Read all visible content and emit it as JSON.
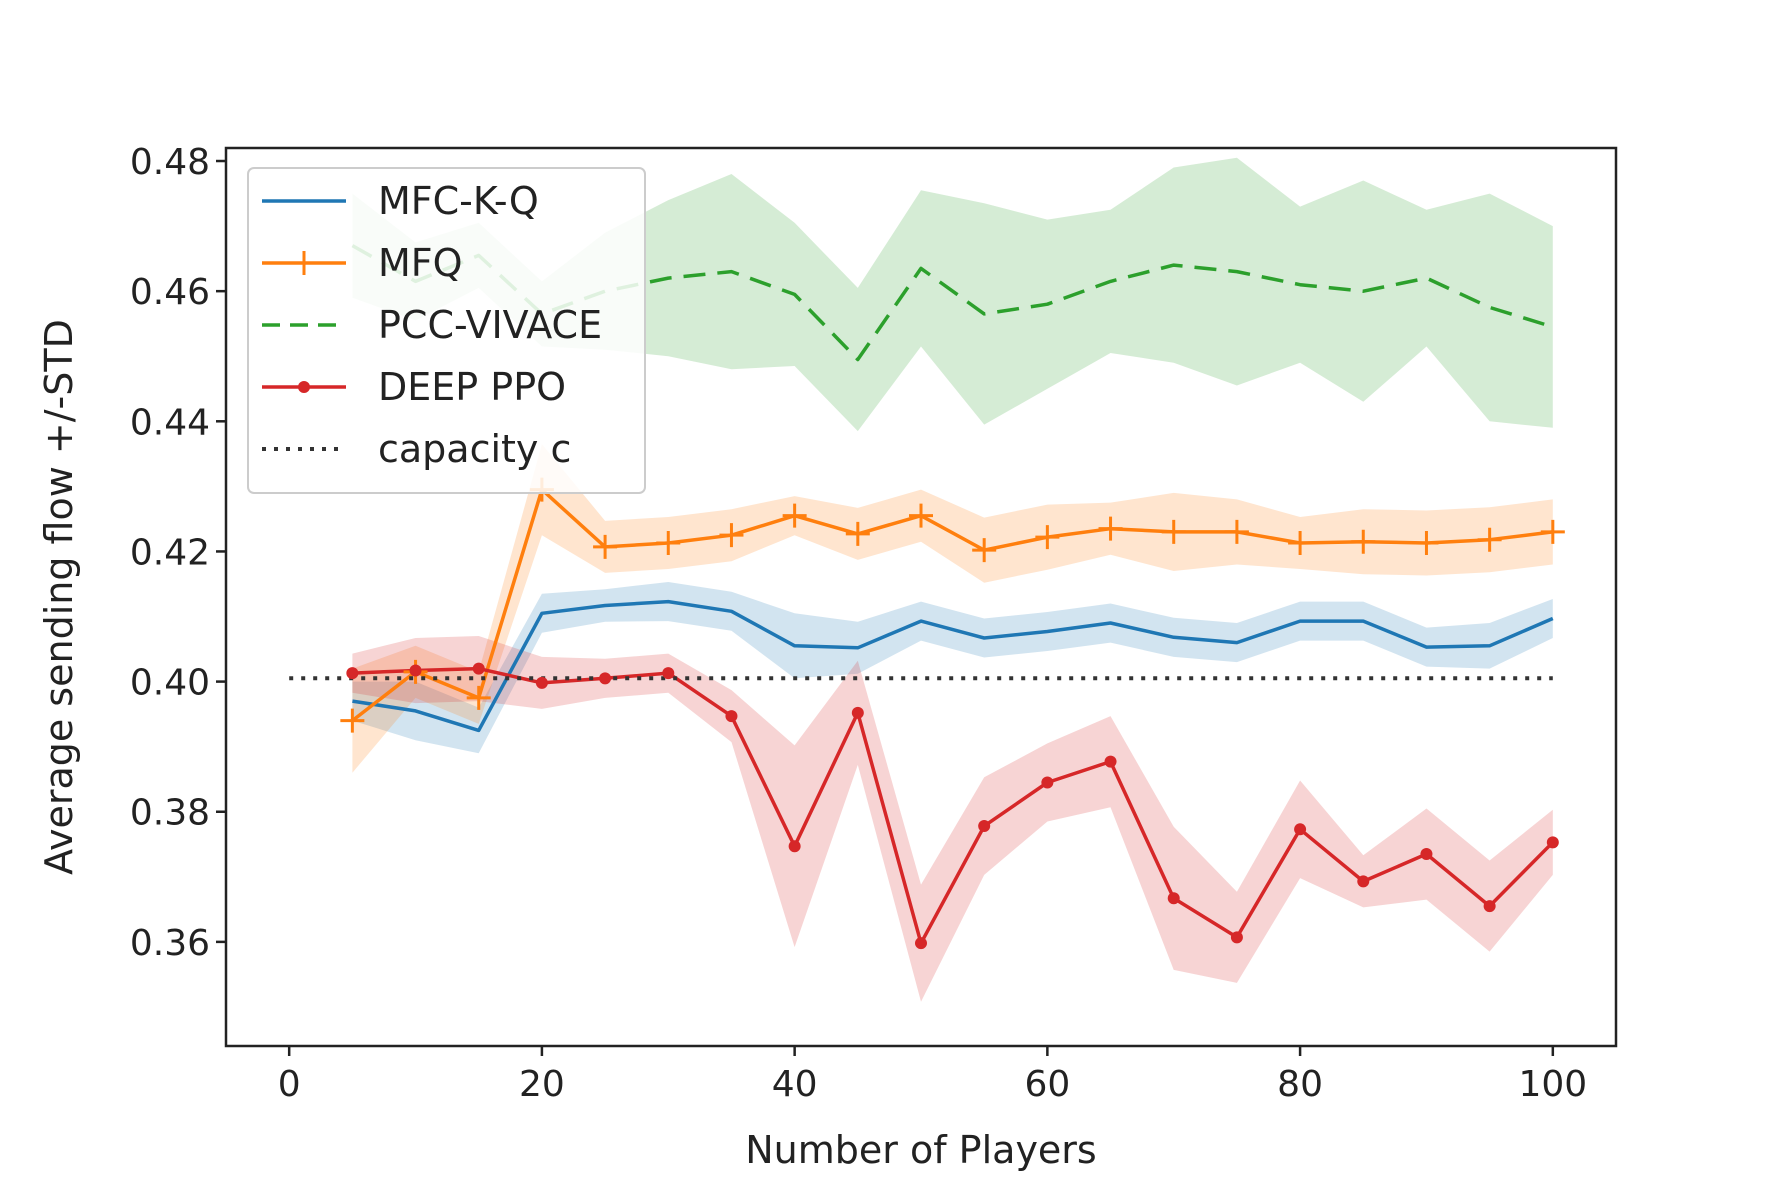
{
  "chart_data": {
    "type": "line",
    "title": "",
    "xlabel": "Number of Players",
    "ylabel": "Average sending flow +/-STD",
    "xlim": [
      -5,
      105
    ],
    "ylim": [
      0.344,
      0.482
    ],
    "xticks": [
      0,
      20,
      40,
      60,
      80,
      100
    ],
    "xtick_labels": [
      "0",
      "20",
      "40",
      "60",
      "80",
      "100"
    ],
    "yticks": [
      0.36,
      0.38,
      0.4,
      0.42,
      0.44,
      0.46,
      0.48
    ],
    "ytick_labels": [
      "0.36",
      "0.38",
      "0.40",
      "0.42",
      "0.44",
      "0.46",
      "0.48"
    ],
    "grid": false,
    "legend_position": "top-left",
    "x": [
      5,
      10,
      15,
      20,
      25,
      30,
      35,
      40,
      45,
      50,
      55,
      60,
      65,
      70,
      75,
      80,
      85,
      90,
      95,
      100
    ],
    "series": [
      {
        "name": "MFC-K-Q",
        "color": "#1f77b4",
        "style": "solid",
        "marker": "none",
        "values": [
          0.397,
          0.3955,
          0.3925,
          0.4105,
          0.4117,
          0.4123,
          0.4108,
          0.4055,
          0.4052,
          0.4093,
          0.4067,
          0.4077,
          0.409,
          0.4068,
          0.406,
          0.4093,
          0.4093,
          0.4053,
          0.4055,
          0.4097
        ],
        "std": [
          0.003,
          0.0045,
          0.0035,
          0.003,
          0.0025,
          0.003,
          0.003,
          0.005,
          0.004,
          0.003,
          0.003,
          0.003,
          0.003,
          0.003,
          0.003,
          0.003,
          0.003,
          0.003,
          0.0035,
          0.003
        ]
      },
      {
        "name": "MFQ",
        "color": "#ff7f0e",
        "style": "solid",
        "marker": "plus",
        "values": [
          0.394,
          0.4015,
          0.3975,
          0.4295,
          0.4207,
          0.4213,
          0.4225,
          0.4255,
          0.4227,
          0.4255,
          0.4202,
          0.4222,
          0.4235,
          0.423,
          0.423,
          0.4213,
          0.4215,
          0.4213,
          0.4218,
          0.423
        ],
        "std": [
          0.008,
          0.004,
          0.004,
          0.007,
          0.004,
          0.004,
          0.004,
          0.003,
          0.004,
          0.004,
          0.005,
          0.005,
          0.004,
          0.006,
          0.005,
          0.004,
          0.005,
          0.005,
          0.005,
          0.005
        ]
      },
      {
        "name": "PCC-VIVACE",
        "color": "#2ca02c",
        "style": "dashed",
        "marker": "none",
        "values": [
          0.467,
          0.4615,
          0.4655,
          0.4565,
          0.46,
          0.462,
          0.463,
          0.4595,
          0.4495,
          0.4635,
          0.4565,
          0.458,
          0.4615,
          0.464,
          0.463,
          0.461,
          0.46,
          0.462,
          0.4575,
          0.4545
        ],
        "std": [
          0.008,
          0.006,
          0.005,
          0.005,
          0.009,
          0.012,
          0.015,
          0.011,
          0.011,
          0.012,
          0.017,
          0.013,
          0.011,
          0.015,
          0.0175,
          0.012,
          0.017,
          0.0105,
          0.0175,
          0.0155
        ]
      },
      {
        "name": "DEEP PPO",
        "color": "#d62728",
        "style": "solid",
        "marker": "dot",
        "values": [
          0.4013,
          0.4017,
          0.402,
          0.3998,
          0.4005,
          0.4013,
          0.3947,
          0.3747,
          0.3952,
          0.3598,
          0.3778,
          0.3845,
          0.3877,
          0.3667,
          0.3607,
          0.3773,
          0.3693,
          0.3735,
          0.3655,
          0.3753
        ],
        "std": [
          0.003,
          0.005,
          0.005,
          0.004,
          0.003,
          0.003,
          0.004,
          0.0155,
          0.008,
          0.009,
          0.0075,
          0.006,
          0.007,
          0.011,
          0.007,
          0.0075,
          0.004,
          0.007,
          0.007,
          0.005
        ]
      },
      {
        "name": "capacity c",
        "color": "#333333",
        "style": "dotted",
        "marker": "none",
        "x": [
          0,
          100
        ],
        "values": [
          0.4005,
          0.4005
        ]
      }
    ]
  }
}
